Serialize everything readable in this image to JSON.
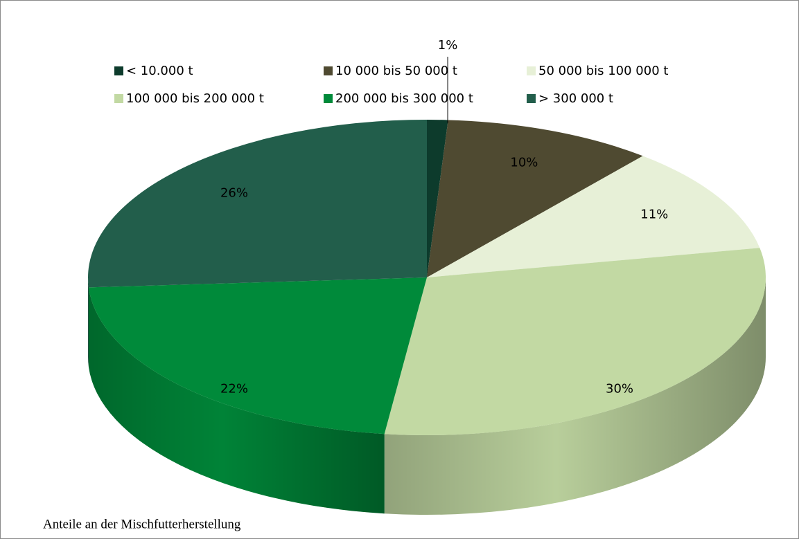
{
  "chart_data": {
    "type": "pie3d",
    "title": "Anteile an der Mischfutterherstellung",
    "categories": [
      "< 10.000 t",
      "10 000 bis 50 000 t",
      "50 000 bis 100 000 t",
      "100 000 bis 200 000 t",
      "200 000 bis 300 000 t",
      "> 300 000 t"
    ],
    "values": [
      1,
      10,
      11,
      30,
      22,
      26
    ],
    "value_labels": [
      "1%",
      "10%",
      "11%",
      "30%",
      "22%",
      "26%"
    ],
    "colors": [
      "#0d3b2c",
      "#4f4a31",
      "#e7f0d7",
      "#c2d9a3",
      "#008a3a",
      "#225e4b"
    ],
    "legend": "top"
  }
}
